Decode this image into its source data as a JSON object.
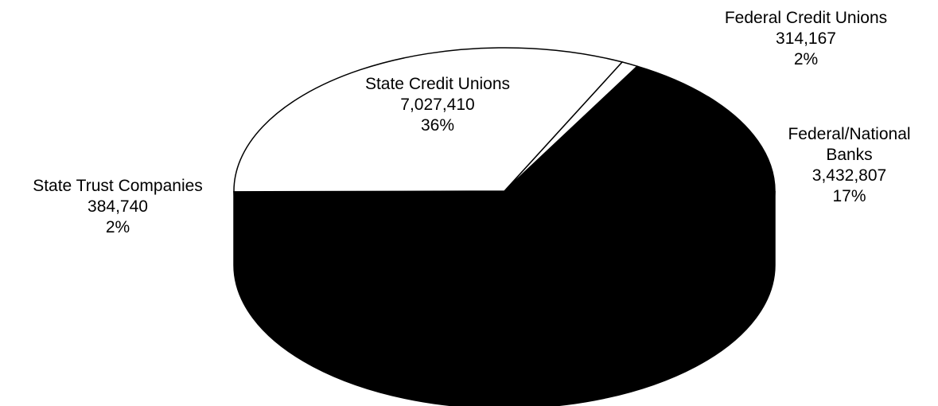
{
  "chart_data": {
    "type": "pie",
    "title": "",
    "slices": [
      {
        "name": "Federal Credit Unions",
        "value": 314167,
        "value_label": "314,167",
        "percent_label": "2%",
        "color": "#ffffff"
      },
      {
        "name": "Federal/National Banks",
        "value": 3432807,
        "value_label": "3,432,807",
        "percent_label": "17%",
        "color": "#000000"
      },
      {
        "name": "State Trust Companies",
        "value": 384740,
        "value_label": "384,740",
        "percent_label": "2%",
        "color": "#ffffff"
      },
      {
        "name": "State Credit Unions",
        "value": 7027410,
        "value_label": "7,027,410",
        "percent_label": "36%",
        "color": "#ffffff"
      }
    ],
    "labels": {
      "federal_credit_unions": {
        "line1": "Federal Credit Unions",
        "value": "314,167",
        "percent": "2%"
      },
      "federal_national_banks": {
        "line1": "Federal/National",
        "line2": "Banks",
        "value": "3,432,807",
        "percent": "17%"
      },
      "state_trust_companies": {
        "line1": "State Trust Companies",
        "value": "384,740",
        "percent": "2%"
      },
      "state_credit_unions": {
        "line1": "State Credit Unions",
        "value": "7,027,410",
        "percent": "36%"
      }
    },
    "style": {
      "edge_color": "#000000",
      "dark_fill": "#000000",
      "light_fill": "#ffffff",
      "three_d": true
    }
  }
}
